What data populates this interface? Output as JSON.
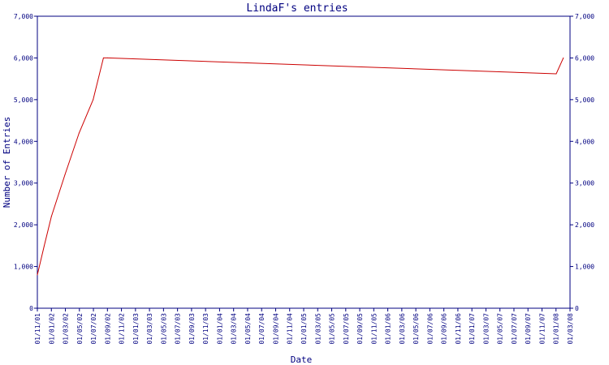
{
  "chart_data": {
    "type": "line",
    "title": "LindaF's entries",
    "xlabel": "Date",
    "ylabel": "Number of Entries",
    "ylim": [
      0,
      7000
    ],
    "y_ticks": [
      "0",
      "1,000",
      "2,000",
      "3,000",
      "4,000",
      "5,000",
      "6,000",
      "7,000"
    ],
    "x_tick_labels": [
      "01/11/01",
      "01/01/02",
      "01/03/02",
      "01/05/02",
      "01/07/02",
      "01/09/02",
      "01/11/02",
      "01/01/03",
      "01/03/03",
      "01/05/03",
      "01/07/03",
      "01/09/03",
      "01/11/03",
      "01/01/04",
      "01/03/04",
      "01/05/04",
      "01/07/04",
      "01/09/04",
      "01/11/04",
      "01/01/05",
      "01/03/05",
      "01/05/05",
      "01/07/05",
      "01/09/05",
      "01/11/05",
      "01/01/06",
      "01/03/06",
      "01/05/06",
      "01/07/06",
      "01/09/06",
      "01/11/06",
      "01/01/07",
      "01/03/07",
      "01/05/07",
      "01/07/07",
      "01/09/07",
      "01/11/07",
      "01/01/08",
      "01/03/08"
    ],
    "x_range": [
      "2001-11-01",
      "2008-03-01"
    ],
    "grid": false,
    "line_color": "#cc0000",
    "axis_color": "#000080",
    "series": [
      {
        "x": [
          "2001-11-01",
          "2001-12-01",
          "2002-01-01",
          "2002-03-01",
          "2002-05-01",
          "2002-07-01",
          "2002-08-15",
          "2002-09-01",
          "2008-01-01",
          "2008-02-01"
        ],
        "values": [
          800,
          1500,
          2200,
          3200,
          4200,
          5000,
          6000,
          6000,
          5620,
          6000
        ]
      }
    ]
  }
}
